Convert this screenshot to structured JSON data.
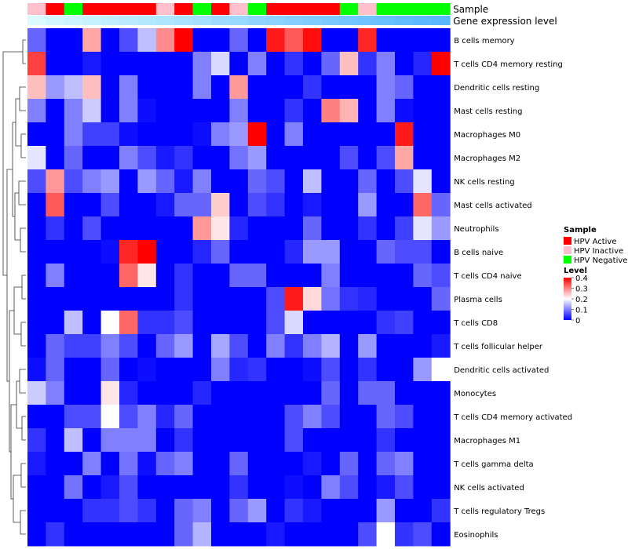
{
  "chart_data": {
    "type": "heatmap",
    "annotation_labels": [
      "Sample",
      "Gene expression level"
    ],
    "rows": [
      "B cells memory",
      "T cells CD4 memory resting",
      "Dendritic cells resting",
      "Mast cells resting",
      "Macrophages M0",
      "Macrophages M2",
      "NK cells resting",
      "Mast cells activated",
      "Neutrophils",
      "B cells naive",
      "T cells CD4 naive",
      "Plasma cells",
      "T cells CD8",
      "T cells follicular helper",
      "Dendritic cells activated",
      "Monocytes",
      "T cells CD4 memory activated",
      "Macrophages M1",
      "T cells gamma delta",
      "NK cells activated",
      "T cells regulatory  Tregs",
      "Eosinophils"
    ],
    "sample_groups": [
      "Inactive",
      "Active",
      "Negative",
      "Active",
      "Active",
      "Active",
      "Active",
      "Inactive",
      "Active",
      "Negative",
      "Active",
      "Inactive",
      "Negative",
      "Active",
      "Active",
      "Active",
      "Active",
      "Negative",
      "Inactive",
      "Negative",
      "Negative",
      "Negative",
      "Negative"
    ],
    "expression_levels": [
      0.02,
      0.05,
      0.07,
      0.09,
      0.11,
      0.13,
      0.15,
      0.17,
      0.19,
      0.21,
      0.23,
      0.25,
      0.27,
      0.29,
      0.31,
      0.33,
      0.35,
      0.37,
      0.39,
      0.41,
      0.43,
      0.45,
      0.47
    ],
    "values": [
      [
        0.08,
        0,
        0,
        0.27,
        0,
        0.06,
        0.15,
        0.29,
        0.4,
        0,
        0,
        0.08,
        0,
        0.38,
        0.33,
        0.39,
        0,
        0,
        0.37,
        0,
        0,
        0,
        0
      ],
      [
        0.35,
        0,
        0,
        0.02,
        0,
        0,
        0,
        0,
        0,
        0.1,
        0.17,
        0,
        0.1,
        0,
        0.04,
        0,
        0.08,
        0.25,
        0.04,
        0.1,
        0,
        0.03,
        0.4
      ],
      [
        0.25,
        0.12,
        0.15,
        0.25,
        0,
        0.1,
        0,
        0,
        0,
        0.1,
        0,
        0.28,
        0,
        0,
        0,
        0.04,
        0,
        0,
        0,
        0.1,
        0.08,
        0,
        0
      ],
      [
        0.1,
        0,
        0.1,
        0.16,
        0,
        0.1,
        0.01,
        0,
        0,
        0,
        0,
        0.1,
        0,
        0,
        0.04,
        0,
        0.3,
        0.26,
        0,
        0.1,
        0.01,
        0,
        0
      ],
      [
        0,
        0,
        0.1,
        0.05,
        0.05,
        0.01,
        0,
        0,
        0,
        0.01,
        0.1,
        0.12,
        0.4,
        0,
        0.1,
        0,
        0,
        0,
        0,
        0,
        0.38,
        0,
        0
      ],
      [
        0.18,
        0,
        0.08,
        0,
        0,
        0.1,
        0.06,
        0.02,
        0.04,
        0,
        0,
        0.09,
        0.12,
        0,
        0,
        0,
        0,
        0.06,
        0,
        0.06,
        0.27,
        0,
        0
      ],
      [
        0.06,
        0.28,
        0.06,
        0.1,
        0.12,
        0,
        0.12,
        0.08,
        0.02,
        0.1,
        0,
        0,
        0.08,
        0.06,
        0,
        0.15,
        0,
        0,
        0.08,
        0,
        0.06,
        0.18,
        0
      ],
      [
        0,
        0.33,
        0,
        0,
        0.06,
        0,
        0,
        0.02,
        0.08,
        0.08,
        0.24,
        0,
        0.06,
        0.04,
        0,
        0.02,
        0,
        0,
        0.12,
        0,
        0,
        0.32,
        0.08
      ],
      [
        0,
        0.04,
        0,
        0.06,
        0,
        0,
        0,
        0,
        0,
        0.28,
        0.22,
        0.03,
        0,
        0,
        0,
        0.08,
        0,
        0,
        0.04,
        0,
        0.05,
        0.18,
        0.12
      ],
      [
        0,
        0,
        0,
        0,
        0.01,
        0.37,
        0.4,
        0,
        0,
        0.03,
        0.08,
        0,
        0,
        0,
        0.03,
        0.12,
        0.12,
        0,
        0,
        0.08,
        0.06,
        0.06,
        0
      ],
      [
        0,
        0.1,
        0,
        0,
        0,
        0.32,
        0.22,
        0,
        0.04,
        0,
        0,
        0.08,
        0.08,
        0,
        0,
        0,
        0.1,
        0,
        0,
        0,
        0,
        0.08,
        0.06
      ],
      [
        0,
        0,
        0,
        0,
        0,
        0,
        0,
        0,
        0.04,
        0,
        0,
        0,
        0,
        0.06,
        0.38,
        0.23,
        0.09,
        0.04,
        0.03,
        0,
        0,
        0,
        0.08
      ],
      [
        0,
        0,
        0.15,
        0,
        0.2,
        0.32,
        0.04,
        0.04,
        0.06,
        0,
        0,
        0,
        0,
        0.06,
        0.17,
        0,
        0,
        0,
        0,
        0.04,
        0.05,
        0,
        0
      ],
      [
        0,
        0.08,
        0.05,
        0.05,
        0.1,
        0.06,
        0,
        0.08,
        0.12,
        0,
        0.13,
        0.06,
        0,
        0.1,
        0.04,
        0.1,
        0.14,
        0,
        0.12,
        0,
        0,
        0,
        0.02
      ],
      [
        0.01,
        0.08,
        0,
        0,
        0.08,
        0,
        0.01,
        0,
        0,
        0,
        0.1,
        0.03,
        0.04,
        0,
        0,
        0.01,
        0.06,
        0,
        0.04,
        0,
        0,
        0.12,
        0.2
      ],
      [
        0.16,
        0.1,
        0,
        0,
        0.22,
        0.03,
        0,
        0,
        0,
        0.03,
        0,
        0,
        0,
        0,
        0,
        0,
        0.08,
        0,
        0.08,
        0.08,
        0,
        0,
        0
      ],
      [
        0,
        0,
        0.06,
        0.06,
        0.2,
        0.06,
        0.1,
        0.03,
        0.08,
        0,
        0,
        0,
        0,
        0,
        0.06,
        0.1,
        0.06,
        0,
        0,
        0.08,
        0.06,
        0,
        0
      ],
      [
        0.04,
        0,
        0.15,
        0,
        0.1,
        0.1,
        0.1,
        0,
        0.04,
        0,
        0,
        0,
        0,
        0,
        0.06,
        0,
        0,
        0,
        0,
        0.04,
        0,
        0,
        0
      ],
      [
        0.02,
        0,
        0,
        0.1,
        0,
        0.09,
        0.01,
        0.08,
        0.1,
        0,
        0,
        0.08,
        0,
        0,
        0,
        0.02,
        0,
        0.08,
        0,
        0.08,
        0.1,
        0,
        0
      ],
      [
        0,
        0,
        0.09,
        0,
        0.02,
        0.06,
        0,
        0,
        0,
        0,
        0,
        0.04,
        0,
        0,
        0.01,
        0,
        0.1,
        0.06,
        0,
        0.02,
        0.06,
        0,
        0
      ],
      [
        0,
        0,
        0,
        0.04,
        0.04,
        0.06,
        0.04,
        0,
        0.08,
        0.1,
        0,
        0.08,
        0.12,
        0,
        0.04,
        0.02,
        0,
        0,
        0,
        0.12,
        0,
        0,
        0.04
      ],
      [
        0,
        0.04,
        0,
        0,
        0,
        0,
        0,
        0,
        0.08,
        0.14,
        0,
        0,
        0,
        0.02,
        0,
        0,
        0,
        0,
        0.06,
        0.2,
        0.04,
        0.06,
        0
      ]
    ],
    "color_scale": {
      "low": "#0000FF",
      "mid": "#FFFFFF",
      "high": "#FF0000",
      "range": [
        0,
        0.4
      ]
    },
    "sample_colors": {
      "Active": "#FF0000",
      "Inactive": "#FFC0CB",
      "Negative": "#00FF00"
    },
    "legend": {
      "sample_title": "Sample",
      "sample_items": [
        {
          "label": "HPV Active",
          "key": "Active"
        },
        {
          "label": "HPV Inactive",
          "key": "Inactive"
        },
        {
          "label": "HPV Negative",
          "key": "Negative"
        }
      ],
      "level_title": "Level",
      "level_ticks": [
        {
          "label": "0.4",
          "value": 0.4
        },
        {
          "label": "0.3",
          "value": 0.3
        },
        {
          "label": "0.2",
          "value": 0.2
        },
        {
          "label": "0.1",
          "value": 0.1
        },
        {
          "label": "0",
          "value": 0
        }
      ]
    }
  }
}
